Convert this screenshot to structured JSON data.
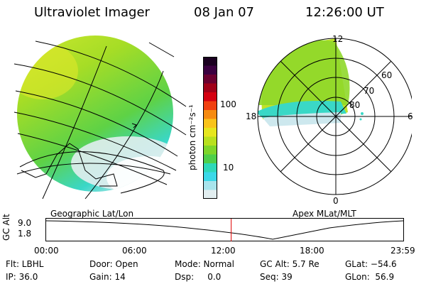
{
  "header": {
    "instrument": "Ultraviolet Imager",
    "date": "08 Jan 07",
    "time": "12:26:00 UT"
  },
  "colorbar": {
    "label": "photon cm⁻²s⁻¹",
    "ticks": [
      "100",
      "10"
    ],
    "colors": [
      "#1a0020",
      "#3a0040",
      "#6a0030",
      "#a00018",
      "#d40010",
      "#f04010",
      "#f68a10",
      "#f9c31a",
      "#e6e61e",
      "#b8e01e",
      "#7ed62a",
      "#4ecf4a",
      "#2ed8b8",
      "#3ad8e8",
      "#a8e4ec",
      "#e2eef0"
    ]
  },
  "panels": {
    "left_label": "Geographic Lat/Lon",
    "right_label": "Apex MLat/MLT"
  },
  "polar": {
    "mlt_labels": {
      "top": "12",
      "bottom": "0",
      "left": "18",
      "right": "6"
    },
    "lat_labels": [
      "60",
      "70",
      "80"
    ]
  },
  "altplot": {
    "axis_label": "GC Alt",
    "y_ticks": [
      "9.0",
      "1.8"
    ],
    "x_ticks": [
      "00:00",
      "06:00",
      "12:00",
      "18:00",
      "23:59"
    ],
    "current_time_fraction": 0.5181,
    "marker_color": "#e00000"
  },
  "info": {
    "flt": "Flt: LBHL",
    "ip": "IP: 36.0",
    "door": "Door: Open",
    "gain": "Gain: 14",
    "mode": "Mode: Normal",
    "dsp": "Dsp:     0.0",
    "gc_alt": "GC Alt: 5.7 Re",
    "seq": "Seq: 39",
    "glat": "GLat: −54.6",
    "glon": "GLon:  56.9"
  }
}
